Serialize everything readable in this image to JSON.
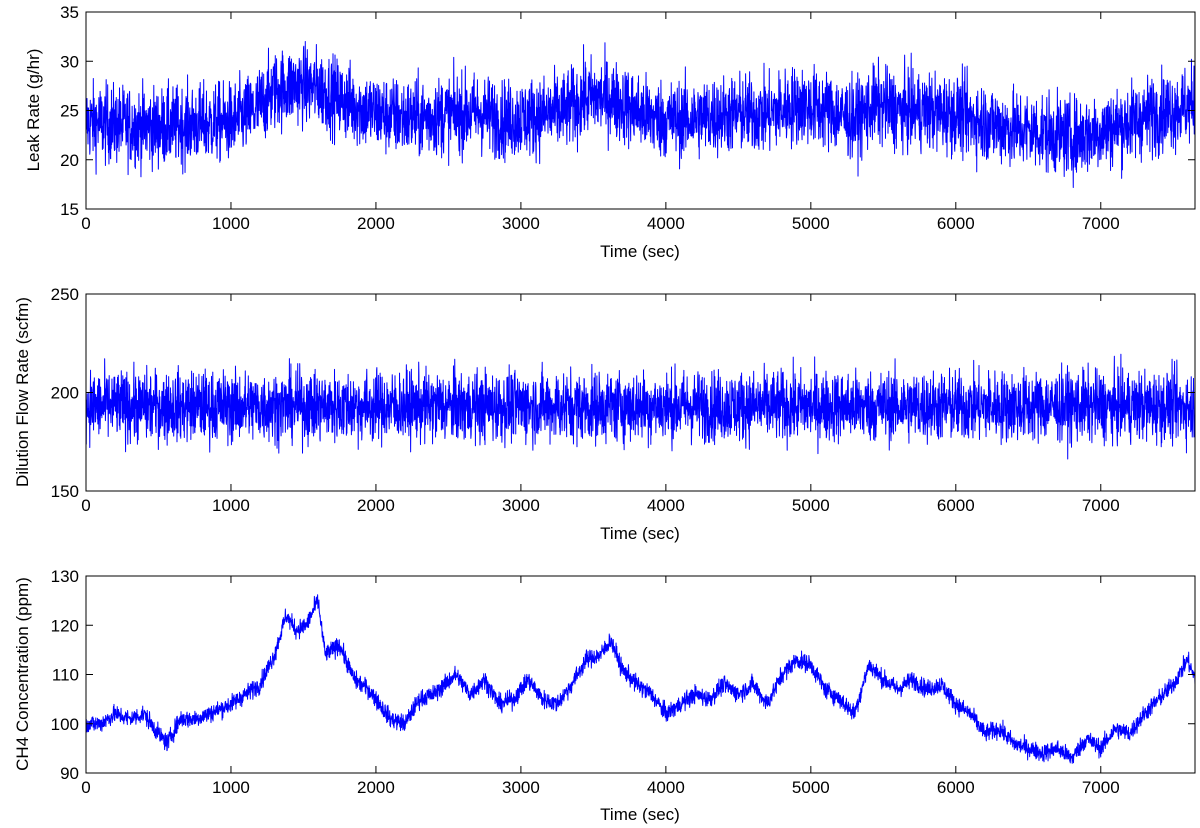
{
  "figure": {
    "background": "#ffffff",
    "line_color": "#0000ff"
  },
  "chart_data": [
    {
      "type": "line",
      "xlabel": "Time (sec)",
      "ylabel": "Leak Rate (g/hr)",
      "xlim": [
        0,
        7650
      ],
      "ylim": [
        15,
        35
      ],
      "xticks": [
        0,
        1000,
        2000,
        3000,
        4000,
        5000,
        6000,
        7000
      ],
      "yticks": [
        15,
        20,
        25,
        30,
        35
      ],
      "grid": false,
      "series": [
        {
          "color": "#0000ff",
          "noise": 2.0,
          "x": [
            0,
            250,
            500,
            750,
            1000,
            1150,
            1300,
            1450,
            1600,
            1750,
            1900,
            2100,
            2300,
            2500,
            2700,
            2900,
            3100,
            3300,
            3450,
            3600,
            3750,
            3900,
            4100,
            4300,
            4500,
            4700,
            4900,
            5100,
            5300,
            5450,
            5600,
            5800,
            6000,
            6200,
            6400,
            6600,
            6800,
            7000,
            7200,
            7400,
            7650
          ],
          "values": [
            23.8,
            23.5,
            23.3,
            23.6,
            23.8,
            24.8,
            27.0,
            27.6,
            27.3,
            26.2,
            25.2,
            24.4,
            24.2,
            24.6,
            24.8,
            24.0,
            24.4,
            24.9,
            26.3,
            26.3,
            25.3,
            24.3,
            24.0,
            24.4,
            24.7,
            24.6,
            25.6,
            25.1,
            24.0,
            25.6,
            25.0,
            24.9,
            24.6,
            23.8,
            23.1,
            22.8,
            22.2,
            22.9,
            23.8,
            24.8,
            25.6
          ]
        }
      ]
    },
    {
      "type": "line",
      "xlabel": "Time (sec)",
      "ylabel": "Dilution Flow Rate (scfm)",
      "xlim": [
        0,
        7650
      ],
      "ylim": [
        150,
        250
      ],
      "xticks": [
        0,
        1000,
        2000,
        3000,
        4000,
        5000,
        6000,
        7000
      ],
      "yticks": [
        150,
        200,
        250
      ],
      "grid": false,
      "series": [
        {
          "color": "#0000ff",
          "noise": 9.0,
          "x": [
            0,
            1000,
            2000,
            3000,
            4000,
            5000,
            6000,
            7000,
            7650
          ],
          "values": [
            193,
            193,
            193,
            193,
            193,
            193,
            193,
            193,
            193
          ]
        }
      ]
    },
    {
      "type": "line",
      "xlabel": "Time (sec)",
      "ylabel": "CH4 Concentration (ppm)",
      "xlim": [
        0,
        7650
      ],
      "ylim": [
        90,
        130
      ],
      "xticks": [
        0,
        1000,
        2000,
        3000,
        4000,
        5000,
        6000,
        7000
      ],
      "yticks": [
        90,
        100,
        110,
        120,
        130
      ],
      "grid": false,
      "series": [
        {
          "color": "#0000ff",
          "noise": 0.9,
          "x": [
            0,
            100,
            200,
            300,
            400,
            500,
            560,
            650,
            750,
            850,
            1000,
            1100,
            1200,
            1300,
            1380,
            1450,
            1520,
            1600,
            1650,
            1750,
            1850,
            1950,
            2100,
            2200,
            2300,
            2400,
            2550,
            2650,
            2750,
            2850,
            2950,
            3050,
            3150,
            3250,
            3350,
            3450,
            3550,
            3620,
            3700,
            3800,
            3900,
            4000,
            4100,
            4200,
            4300,
            4400,
            4500,
            4600,
            4700,
            4800,
            4900,
            5000,
            5100,
            5200,
            5300,
            5400,
            5500,
            5600,
            5700,
            5800,
            5900,
            6000,
            6100,
            6200,
            6300,
            6400,
            6500,
            6600,
            6700,
            6800,
            6900,
            7000,
            7100,
            7200,
            7300,
            7400,
            7500,
            7600,
            7650
          ],
          "values": [
            100,
            100,
            102,
            101,
            102,
            98,
            96,
            101,
            101,
            102,
            104,
            106,
            108,
            114,
            122,
            119,
            120,
            125,
            114,
            116,
            109,
            107,
            101,
            100,
            105,
            106,
            110,
            106,
            109,
            104,
            105,
            109,
            105,
            104,
            108,
            113,
            114,
            117,
            111,
            108,
            106,
            102,
            104,
            106,
            105,
            108,
            106,
            108,
            104,
            110,
            113,
            112,
            107,
            105,
            102,
            112,
            109,
            107,
            109,
            107,
            108,
            104,
            102,
            98,
            99,
            96,
            95,
            94,
            95,
            93,
            97,
            95,
            99,
            98,
            102,
            105,
            108,
            113,
            109
          ]
        }
      ]
    }
  ]
}
